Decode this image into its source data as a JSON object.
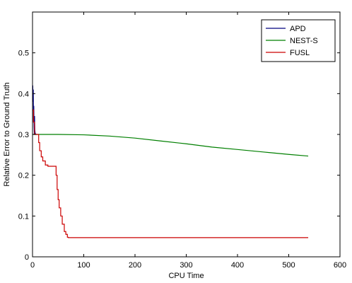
{
  "chart_data": {
    "type": "line",
    "title": "",
    "xlabel": "CPU Time",
    "ylabel": "Relative Error to Ground Truth",
    "xlim": [
      0,
      600
    ],
    "ylim": [
      0,
      0.6
    ],
    "x_ticks": [
      "0",
      "100",
      "200",
      "300",
      "400",
      "500",
      "600"
    ],
    "y_ticks": [
      "0",
      "0.1",
      "0.2",
      "0.3",
      "0.4",
      "0.5"
    ],
    "grid": false,
    "legend_position": "top-right",
    "series": [
      {
        "name": "APD",
        "color": "#00007f",
        "step": false,
        "points": [
          [
            0.5,
            0.42
          ],
          [
            1,
            0.38
          ],
          [
            1.5,
            0.41
          ],
          [
            2,
            0.33
          ],
          [
            2.5,
            0.37
          ],
          [
            3,
            0.32
          ],
          [
            3.5,
            0.3
          ],
          [
            4,
            0.345
          ],
          [
            4.5,
            0.31
          ],
          [
            5,
            0.305
          ],
          [
            6,
            0.3
          ],
          [
            8,
            0.3
          ]
        ]
      },
      {
        "name": "NEST-S",
        "color": "#007f00",
        "step": false,
        "points": [
          [
            0,
            0.3
          ],
          [
            10,
            0.3
          ],
          [
            50,
            0.3
          ],
          [
            100,
            0.299
          ],
          [
            150,
            0.296
          ],
          [
            200,
            0.291
          ],
          [
            250,
            0.284
          ],
          [
            300,
            0.277
          ],
          [
            350,
            0.269
          ],
          [
            400,
            0.263
          ],
          [
            450,
            0.257
          ],
          [
            500,
            0.251
          ],
          [
            538,
            0.247
          ]
        ]
      },
      {
        "name": "FUSL",
        "color": "#cc0000",
        "step": true,
        "points": [
          [
            0,
            0.36
          ],
          [
            2,
            0.33
          ],
          [
            4,
            0.3
          ],
          [
            6,
            0.3
          ],
          [
            10,
            0.3
          ],
          [
            12,
            0.28
          ],
          [
            14,
            0.26
          ],
          [
            17,
            0.245
          ],
          [
            20,
            0.235
          ],
          [
            25,
            0.225
          ],
          [
            30,
            0.222
          ],
          [
            45,
            0.222
          ],
          [
            46,
            0.2
          ],
          [
            48,
            0.165
          ],
          [
            50,
            0.14
          ],
          [
            52,
            0.12
          ],
          [
            55,
            0.1
          ],
          [
            58,
            0.08
          ],
          [
            62,
            0.062
          ],
          [
            65,
            0.055
          ],
          [
            68,
            0.048
          ],
          [
            70,
            0.047
          ],
          [
            100,
            0.047
          ],
          [
            300,
            0.047
          ],
          [
            538,
            0.047
          ]
        ]
      }
    ]
  }
}
